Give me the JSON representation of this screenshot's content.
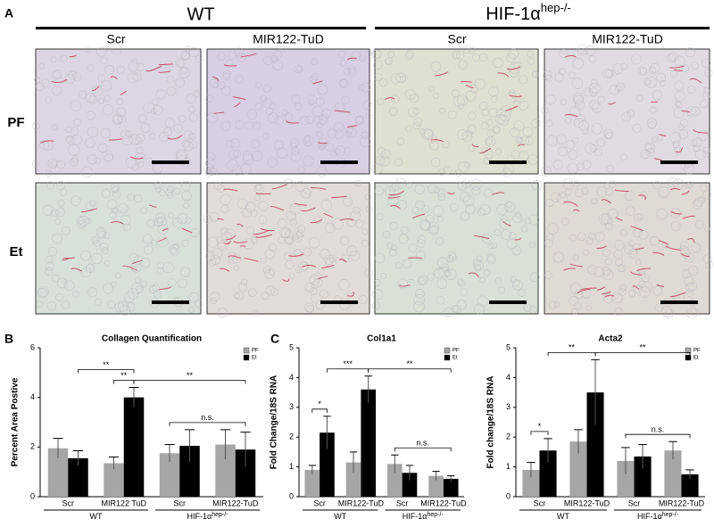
{
  "panel_labels": [
    "A",
    "B",
    "C"
  ],
  "micrographs": {
    "groups": [
      {
        "text": "WT"
      },
      {
        "text": "HIF-1α",
        "superscript": "hep-/-"
      }
    ],
    "columns": [
      "Scr",
      "MIR122-TuD",
      "Scr",
      "MIR122-TuD"
    ],
    "rows": [
      "PF",
      "Et"
    ]
  },
  "chart_data": [
    {
      "type": "bar",
      "title": "Collagen Quantification",
      "y_label": "Percent Area Postive",
      "categories": [
        "Scr",
        "MIR122 TuD",
        "Scr",
        "MIR122-TuD"
      ],
      "groups": [
        {
          "text": "WT"
        },
        {
          "text": "HIF-1α",
          "superscript": "hep-/-"
        }
      ],
      "series": [
        {
          "name": "PF",
          "color": "#a6a6a6",
          "values": [
            1.95,
            1.35,
            1.75,
            2.1
          ],
          "errors": [
            0.4,
            0.25,
            0.35,
            0.6
          ]
        },
        {
          "name": "Et",
          "color": "#000000",
          "values": [
            1.55,
            4.0,
            2.05,
            1.9
          ],
          "errors": [
            0.3,
            0.4,
            0.65,
            0.7
          ]
        }
      ],
      "ylim": [
        0,
        6
      ],
      "yticks": [
        0,
        2,
        4,
        6
      ],
      "legend": "upper right",
      "annotations": [
        {
          "text": "**",
          "from": [
            0,
            1
          ],
          "to": [
            1,
            1
          ]
        },
        {
          "text": "**",
          "from": [
            1,
            0
          ],
          "to": [
            1,
            1
          ]
        },
        {
          "text": "**",
          "from": [
            1,
            1
          ],
          "to": [
            1,
            3
          ]
        },
        {
          "text": "n.s.",
          "from": [
            0,
            2
          ],
          "to": [
            1,
            3
          ]
        }
      ]
    },
    {
      "type": "bar",
      "title": "Col1a1",
      "y_label": "Fold Change/18S RNA",
      "categories": [
        "Scr",
        "MIR122-TuD",
        "Scr",
        "MIR122-TuD"
      ],
      "groups": [
        {
          "text": "WT"
        },
        {
          "text": "HIF-1α",
          "superscript": "hep-/-"
        }
      ],
      "series": [
        {
          "name": "PF",
          "color": "#a6a6a6",
          "values": [
            0.9,
            1.15,
            1.1,
            0.7
          ],
          "errors": [
            0.15,
            0.35,
            0.3,
            0.15
          ]
        },
        {
          "name": "Et",
          "color": "#000000",
          "values": [
            2.15,
            3.6,
            0.8,
            0.6
          ],
          "errors": [
            0.55,
            0.45,
            0.25,
            0.1
          ]
        }
      ],
      "ylim": [
        0,
        5
      ],
      "yticks": [
        0,
        1,
        2,
        3,
        4,
        5
      ],
      "legend": "upper right",
      "annotations": [
        {
          "text": "*",
          "from": [
            0,
            0
          ],
          "to": [
            1,
            0
          ]
        },
        {
          "text": "***",
          "from": [
            1,
            0
          ],
          "to": [
            1,
            1
          ]
        },
        {
          "text": "**",
          "from": [
            1,
            1
          ],
          "to": [
            1,
            3
          ]
        },
        {
          "text": "n.s.",
          "from": [
            0,
            2
          ],
          "to": [
            1,
            3
          ]
        }
      ]
    },
    {
      "type": "bar",
      "title": "Acta2",
      "y_label": "Fold change/18S RNA",
      "categories": [
        "Scr",
        "MIR122-TuD",
        "Scr",
        "MIR122-TuD"
      ],
      "groups": [
        {
          "text": "WT"
        },
        {
          "text": "HIF-1α",
          "superscript": "hep-/-"
        }
      ],
      "series": [
        {
          "name": "PF",
          "color": "#a6a6a6",
          "values": [
            0.9,
            1.85,
            1.2,
            1.55
          ],
          "errors": [
            0.25,
            0.4,
            0.45,
            0.3
          ]
        },
        {
          "name": "Et",
          "color": "#000000",
          "values": [
            1.55,
            3.5,
            1.35,
            0.75
          ],
          "errors": [
            0.4,
            1.1,
            0.4,
            0.15
          ]
        }
      ],
      "ylim": [
        0,
        5
      ],
      "yticks": [
        0,
        1,
        2,
        3,
        4,
        5
      ],
      "legend": "upper right",
      "annotations": [
        {
          "text": "*",
          "from": [
            0,
            0
          ],
          "to": [
            1,
            0
          ]
        },
        {
          "text": "**",
          "from": [
            1,
            0
          ],
          "to": [
            1,
            1
          ]
        },
        {
          "text": "**",
          "from": [
            1,
            1
          ],
          "to": [
            1,
            3
          ]
        },
        {
          "text": "n.s.",
          "from": [
            0,
            2
          ],
          "to": [
            1,
            3
          ]
        }
      ]
    }
  ]
}
